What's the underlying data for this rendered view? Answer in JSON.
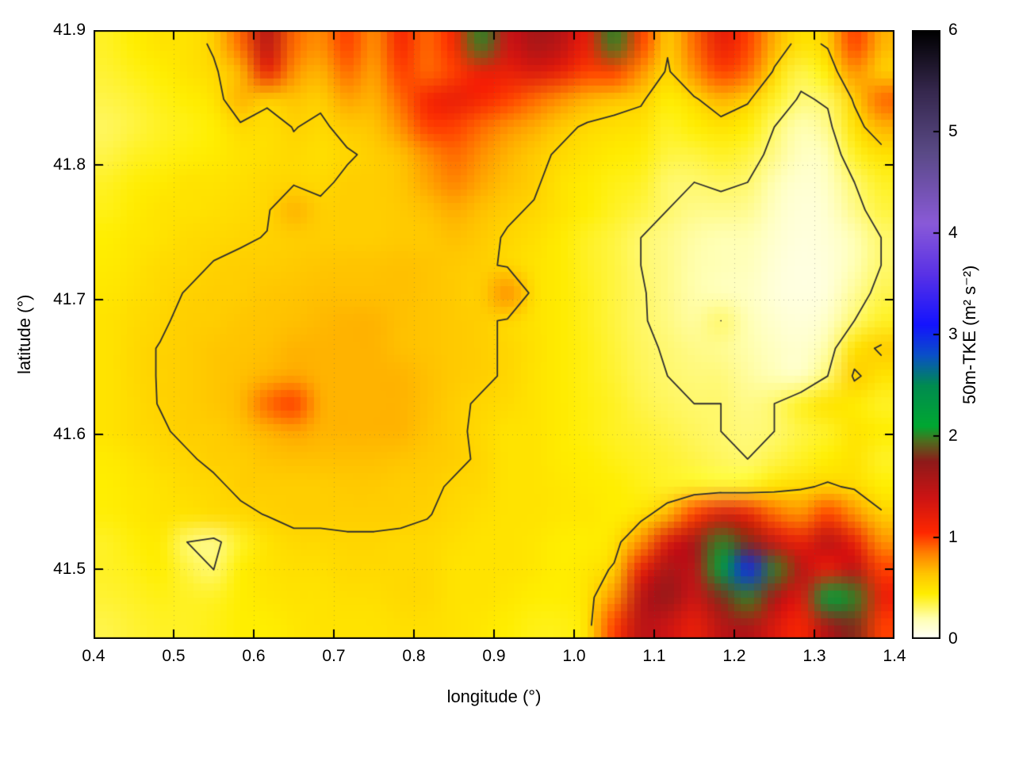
{
  "chart_data": {
    "type": "heatmap",
    "title": "",
    "xlabel": "longitude (°)",
    "ylabel": "latitude (°)",
    "x_range": [
      0.4,
      1.4
    ],
    "y_range": [
      41.448,
      41.9
    ],
    "x_ticks": [
      0.4,
      0.5,
      0.6,
      0.7,
      0.8,
      0.9,
      1.0,
      1.1,
      1.2,
      1.3,
      1.4
    ],
    "x_tick_labels": [
      "0.4",
      "0.5",
      "0.6",
      "0.7",
      "0.8",
      "0.9",
      "1.0",
      "1.1",
      "1.2",
      "1.3",
      "1.4"
    ],
    "y_ticks": [
      41.5,
      41.6,
      41.7,
      41.8,
      41.9
    ],
    "y_tick_labels": [
      "41.5",
      "41.6",
      "41.7",
      "41.8",
      "41.9"
    ],
    "grid_lines": true,
    "contour_levels": [
      0.3,
      0.575
    ],
    "contour_color": "#2e2e2e",
    "colorbar": {
      "label": "50m-TKE (m² s⁻²)",
      "min": 0,
      "max": 6,
      "ticks": [
        0,
        1,
        2,
        3,
        4,
        5,
        6
      ],
      "tick_labels": [
        "0",
        "1",
        "2",
        "3",
        "4",
        "5",
        "6"
      ]
    },
    "colormap_stops": [
      [
        0.0,
        "#ffffff"
      ],
      [
        0.2,
        "#ffffb4"
      ],
      [
        0.45,
        "#ffee00"
      ],
      [
        0.65,
        "#ffc400"
      ],
      [
        0.85,
        "#ff8000"
      ],
      [
        1.05,
        "#ff2800"
      ],
      [
        1.4,
        "#cc1414"
      ],
      [
        1.75,
        "#8f1a1a"
      ],
      [
        1.95,
        "#4f6c1e"
      ],
      [
        2.1,
        "#00a832"
      ],
      [
        2.5,
        "#008c50"
      ],
      [
        2.8,
        "#0a50c8"
      ],
      [
        3.1,
        "#1414ff"
      ],
      [
        3.6,
        "#5a32e6"
      ],
      [
        4.1,
        "#8a5ad8"
      ],
      [
        4.8,
        "#5a4a86"
      ],
      [
        5.4,
        "#36284e"
      ],
      [
        6.0,
        "#000000"
      ]
    ],
    "grid": {
      "rows": 22,
      "cols": 30,
      "values": [
        [
          0.4,
          0.45,
          0.5,
          0.5,
          0.6,
          0.9,
          1.5,
          0.9,
          0.8,
          1.0,
          0.8,
          1.1,
          0.9,
          1.1,
          2.0,
          1.4,
          1.6,
          1.5,
          1.2,
          2.0,
          1.0,
          0.6,
          0.9,
          1.2,
          1.0,
          0.7,
          0.5,
          0.6,
          1.0,
          0.7
        ],
        [
          0.38,
          0.42,
          0.45,
          0.5,
          0.55,
          0.7,
          1.2,
          0.8,
          0.7,
          0.9,
          0.75,
          1.0,
          0.9,
          1.0,
          1.2,
          1.2,
          1.3,
          1.2,
          1.0,
          1.0,
          0.8,
          0.55,
          0.8,
          1.0,
          0.9,
          0.55,
          0.35,
          0.45,
          0.8,
          0.6
        ],
        [
          0.35,
          0.38,
          0.42,
          0.45,
          0.5,
          0.7,
          0.6,
          0.65,
          0.6,
          0.75,
          0.7,
          0.9,
          1.1,
          1.2,
          1.1,
          1.0,
          0.9,
          0.8,
          0.7,
          0.65,
          0.6,
          0.45,
          0.55,
          0.7,
          0.6,
          0.4,
          0.28,
          0.32,
          0.6,
          0.9
        ],
        [
          0.32,
          0.36,
          0.4,
          0.42,
          0.45,
          0.55,
          0.52,
          0.58,
          0.55,
          0.62,
          0.65,
          0.8,
          1.0,
          1.0,
          0.9,
          0.8,
          0.72,
          0.62,
          0.55,
          0.52,
          0.5,
          0.4,
          0.45,
          0.5,
          0.45,
          0.3,
          0.2,
          0.26,
          0.5,
          0.7
        ],
        [
          0.35,
          0.4,
          0.42,
          0.44,
          0.46,
          0.5,
          0.52,
          0.55,
          0.52,
          0.56,
          0.6,
          0.66,
          0.8,
          0.9,
          0.8,
          0.7,
          0.62,
          0.55,
          0.5,
          0.46,
          0.44,
          0.36,
          0.36,
          0.4,
          0.36,
          0.26,
          0.16,
          0.2,
          0.4,
          0.5
        ],
        [
          0.4,
          0.44,
          0.46,
          0.5,
          0.5,
          0.52,
          0.55,
          0.56,
          0.55,
          0.6,
          0.6,
          0.64,
          0.74,
          0.84,
          0.74,
          0.66,
          0.6,
          0.5,
          0.46,
          0.42,
          0.4,
          0.3,
          0.3,
          0.32,
          0.3,
          0.2,
          0.12,
          0.16,
          0.3,
          0.4
        ],
        [
          0.42,
          0.46,
          0.5,
          0.5,
          0.52,
          0.54,
          0.56,
          0.7,
          0.6,
          0.6,
          0.6,
          0.62,
          0.66,
          0.72,
          0.66,
          0.6,
          0.56,
          0.5,
          0.45,
          0.4,
          0.36,
          0.3,
          0.26,
          0.26,
          0.25,
          0.16,
          0.1,
          0.13,
          0.26,
          0.36
        ],
        [
          0.45,
          0.48,
          0.5,
          0.54,
          0.55,
          0.56,
          0.58,
          0.6,
          0.6,
          0.6,
          0.6,
          0.62,
          0.62,
          0.66,
          0.62,
          0.56,
          0.52,
          0.46,
          0.4,
          0.36,
          0.3,
          0.26,
          0.22,
          0.2,
          0.2,
          0.13,
          0.09,
          0.11,
          0.2,
          0.3
        ],
        [
          0.46,
          0.5,
          0.54,
          0.55,
          0.58,
          0.6,
          0.6,
          0.62,
          0.64,
          0.65,
          0.65,
          0.66,
          0.65,
          0.62,
          0.6,
          0.56,
          0.5,
          0.46,
          0.4,
          0.36,
          0.3,
          0.26,
          0.21,
          0.19,
          0.18,
          0.11,
          0.08,
          0.1,
          0.2,
          0.3
        ],
        [
          0.48,
          0.52,
          0.55,
          0.58,
          0.6,
          0.6,
          0.64,
          0.65,
          0.66,
          0.66,
          0.66,
          0.66,
          0.65,
          0.62,
          0.6,
          0.8,
          0.52,
          0.46,
          0.41,
          0.36,
          0.31,
          0.26,
          0.21,
          0.18,
          0.16,
          0.1,
          0.08,
          0.1,
          0.24,
          0.34
        ],
        [
          0.5,
          0.54,
          0.56,
          0.6,
          0.6,
          0.64,
          0.65,
          0.66,
          0.68,
          0.7,
          0.7,
          0.66,
          0.65,
          0.62,
          0.6,
          0.56,
          0.5,
          0.46,
          0.41,
          0.36,
          0.31,
          0.27,
          0.23,
          0.3,
          0.2,
          0.13,
          0.1,
          0.15,
          0.3,
          0.4
        ],
        [
          0.5,
          0.55,
          0.58,
          0.6,
          0.64,
          0.65,
          0.66,
          0.7,
          0.7,
          0.7,
          0.7,
          0.66,
          0.65,
          0.62,
          0.6,
          0.56,
          0.51,
          0.46,
          0.42,
          0.37,
          0.32,
          0.29,
          0.26,
          0.25,
          0.21,
          0.16,
          0.13,
          0.22,
          0.5,
          0.6
        ],
        [
          0.5,
          0.55,
          0.58,
          0.6,
          0.64,
          0.66,
          0.7,
          0.74,
          0.7,
          0.7,
          0.7,
          0.7,
          0.66,
          0.62,
          0.6,
          0.56,
          0.5,
          0.46,
          0.42,
          0.38,
          0.33,
          0.3,
          0.28,
          0.28,
          0.23,
          0.19,
          0.16,
          0.3,
          0.6,
          0.5
        ],
        [
          0.5,
          0.54,
          0.58,
          0.6,
          0.64,
          0.68,
          0.9,
          1.0,
          0.72,
          0.7,
          0.7,
          0.7,
          0.66,
          0.6,
          0.56,
          0.54,
          0.5,
          0.46,
          0.43,
          0.4,
          0.35,
          0.32,
          0.3,
          0.3,
          0.26,
          0.3,
          0.4,
          0.5,
          0.46,
          0.4
        ],
        [
          0.5,
          0.54,
          0.56,
          0.6,
          0.6,
          0.65,
          0.7,
          0.75,
          0.7,
          0.7,
          0.7,
          0.7,
          0.65,
          0.6,
          0.55,
          0.5,
          0.5,
          0.46,
          0.43,
          0.4,
          0.38,
          0.35,
          0.32,
          0.3,
          0.28,
          0.3,
          0.36,
          0.4,
          0.5,
          0.45
        ],
        [
          0.46,
          0.5,
          0.54,
          0.56,
          0.6,
          0.6,
          0.65,
          0.66,
          0.66,
          0.66,
          0.66,
          0.65,
          0.62,
          0.6,
          0.56,
          0.5,
          0.5,
          0.46,
          0.45,
          0.42,
          0.4,
          0.38,
          0.35,
          0.32,
          0.3,
          0.35,
          0.4,
          0.45,
          0.5,
          0.4
        ],
        [
          0.45,
          0.48,
          0.5,
          0.54,
          0.55,
          0.6,
          0.6,
          0.6,
          0.6,
          0.62,
          0.62,
          0.6,
          0.6,
          0.56,
          0.55,
          0.5,
          0.5,
          0.48,
          0.46,
          0.45,
          0.42,
          0.4,
          0.4,
          0.38,
          0.4,
          0.5,
          0.55,
          0.6,
          0.55,
          0.45
        ],
        [
          0.44,
          0.47,
          0.5,
          0.5,
          0.54,
          0.55,
          0.58,
          0.6,
          0.6,
          0.6,
          0.6,
          0.6,
          0.58,
          0.55,
          0.52,
          0.5,
          0.5,
          0.48,
          0.48,
          0.45,
          0.5,
          0.7,
          1.0,
          1.3,
          1.2,
          0.9,
          0.8,
          1.0,
          0.8,
          0.6
        ],
        [
          0.4,
          0.44,
          0.46,
          0.3,
          0.26,
          0.4,
          0.5,
          0.55,
          0.55,
          0.56,
          0.56,
          0.55,
          0.55,
          0.52,
          0.5,
          0.5,
          0.48,
          0.45,
          0.45,
          0.5,
          0.8,
          1.3,
          1.6,
          2.0,
          1.8,
          1.4,
          1.2,
          1.5,
          1.2,
          0.8
        ],
        [
          0.4,
          0.42,
          0.45,
          0.36,
          0.3,
          0.45,
          0.5,
          0.52,
          0.52,
          0.55,
          0.55,
          0.55,
          0.55,
          0.5,
          0.5,
          0.5,
          0.48,
          0.45,
          0.48,
          0.6,
          1.2,
          1.6,
          1.5,
          2.2,
          3.0,
          2.0,
          1.5,
          1.2,
          1.5,
          1.0
        ],
        [
          0.38,
          0.4,
          0.42,
          0.4,
          0.4,
          0.45,
          0.48,
          0.5,
          0.5,
          0.52,
          0.52,
          0.55,
          0.55,
          0.5,
          0.5,
          0.48,
          0.45,
          0.45,
          0.5,
          0.8,
          1.5,
          1.7,
          1.4,
          1.8,
          2.0,
          1.6,
          1.3,
          2.2,
          2.0,
          1.2
        ],
        [
          0.35,
          0.38,
          0.4,
          0.4,
          0.42,
          0.45,
          0.45,
          0.48,
          0.5,
          0.5,
          0.5,
          0.52,
          0.52,
          0.5,
          0.48,
          0.45,
          0.42,
          0.42,
          0.5,
          1.0,
          1.5,
          1.4,
          1.2,
          1.5,
          1.6,
          1.3,
          1.1,
          1.6,
          1.8,
          1.0
        ]
      ]
    }
  }
}
